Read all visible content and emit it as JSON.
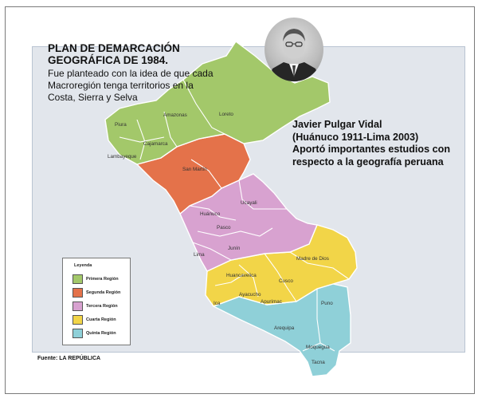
{
  "title_lines": [
    "PLAN DE DEMARCACIÓN",
    "GEOGRÁFICA DE 1984."
  ],
  "subtitle": "Fue planteado con la idea de que cada Macroregión tenga territorios en la Costa, Sierra y Selva",
  "caption_lines": [
    "Javier Pulgar Vidal",
    "(Huánuco 1911-Lima 2003)",
    "Aportó importantes estudios con",
    "respecto a la geografía peruana"
  ],
  "legend": {
    "title": "Leyenda",
    "items": [
      {
        "label": "Primera Región",
        "color": "#a3c86a"
      },
      {
        "label": "Segunda Región",
        "color": "#e4724a"
      },
      {
        "label": "Tercera Región",
        "color": "#d8a2d0"
      },
      {
        "label": "Cuarta Región",
        "color": "#f2d548"
      },
      {
        "label": "Quinta Región",
        "color": "#8fd0d8"
      }
    ]
  },
  "regions": {
    "piura": "Piura",
    "lambayeque": "Lambayeque",
    "cajamarca": "Cajamarca",
    "amazonas": "Amazonas",
    "loreto": "Loreto",
    "san_martin": "San Martín",
    "ucayali": "Ucayali",
    "huanuco": "Huánuco",
    "pasco": "Pasco",
    "junin": "Junín",
    "lima": "Lima",
    "huancavelica": "Huancavelica",
    "ica": "Ica",
    "ayacucho": "Ayacucho",
    "apurimac": "Apurímac",
    "cusco": "Cusco",
    "madre_de_dios": "Madre de Dios",
    "puno": "Puno",
    "arequipa": "Arequipa",
    "moquegua": "Moquegua",
    "tacna": "Tacna"
  },
  "source": "Fuente: LA REPÚBLICA"
}
